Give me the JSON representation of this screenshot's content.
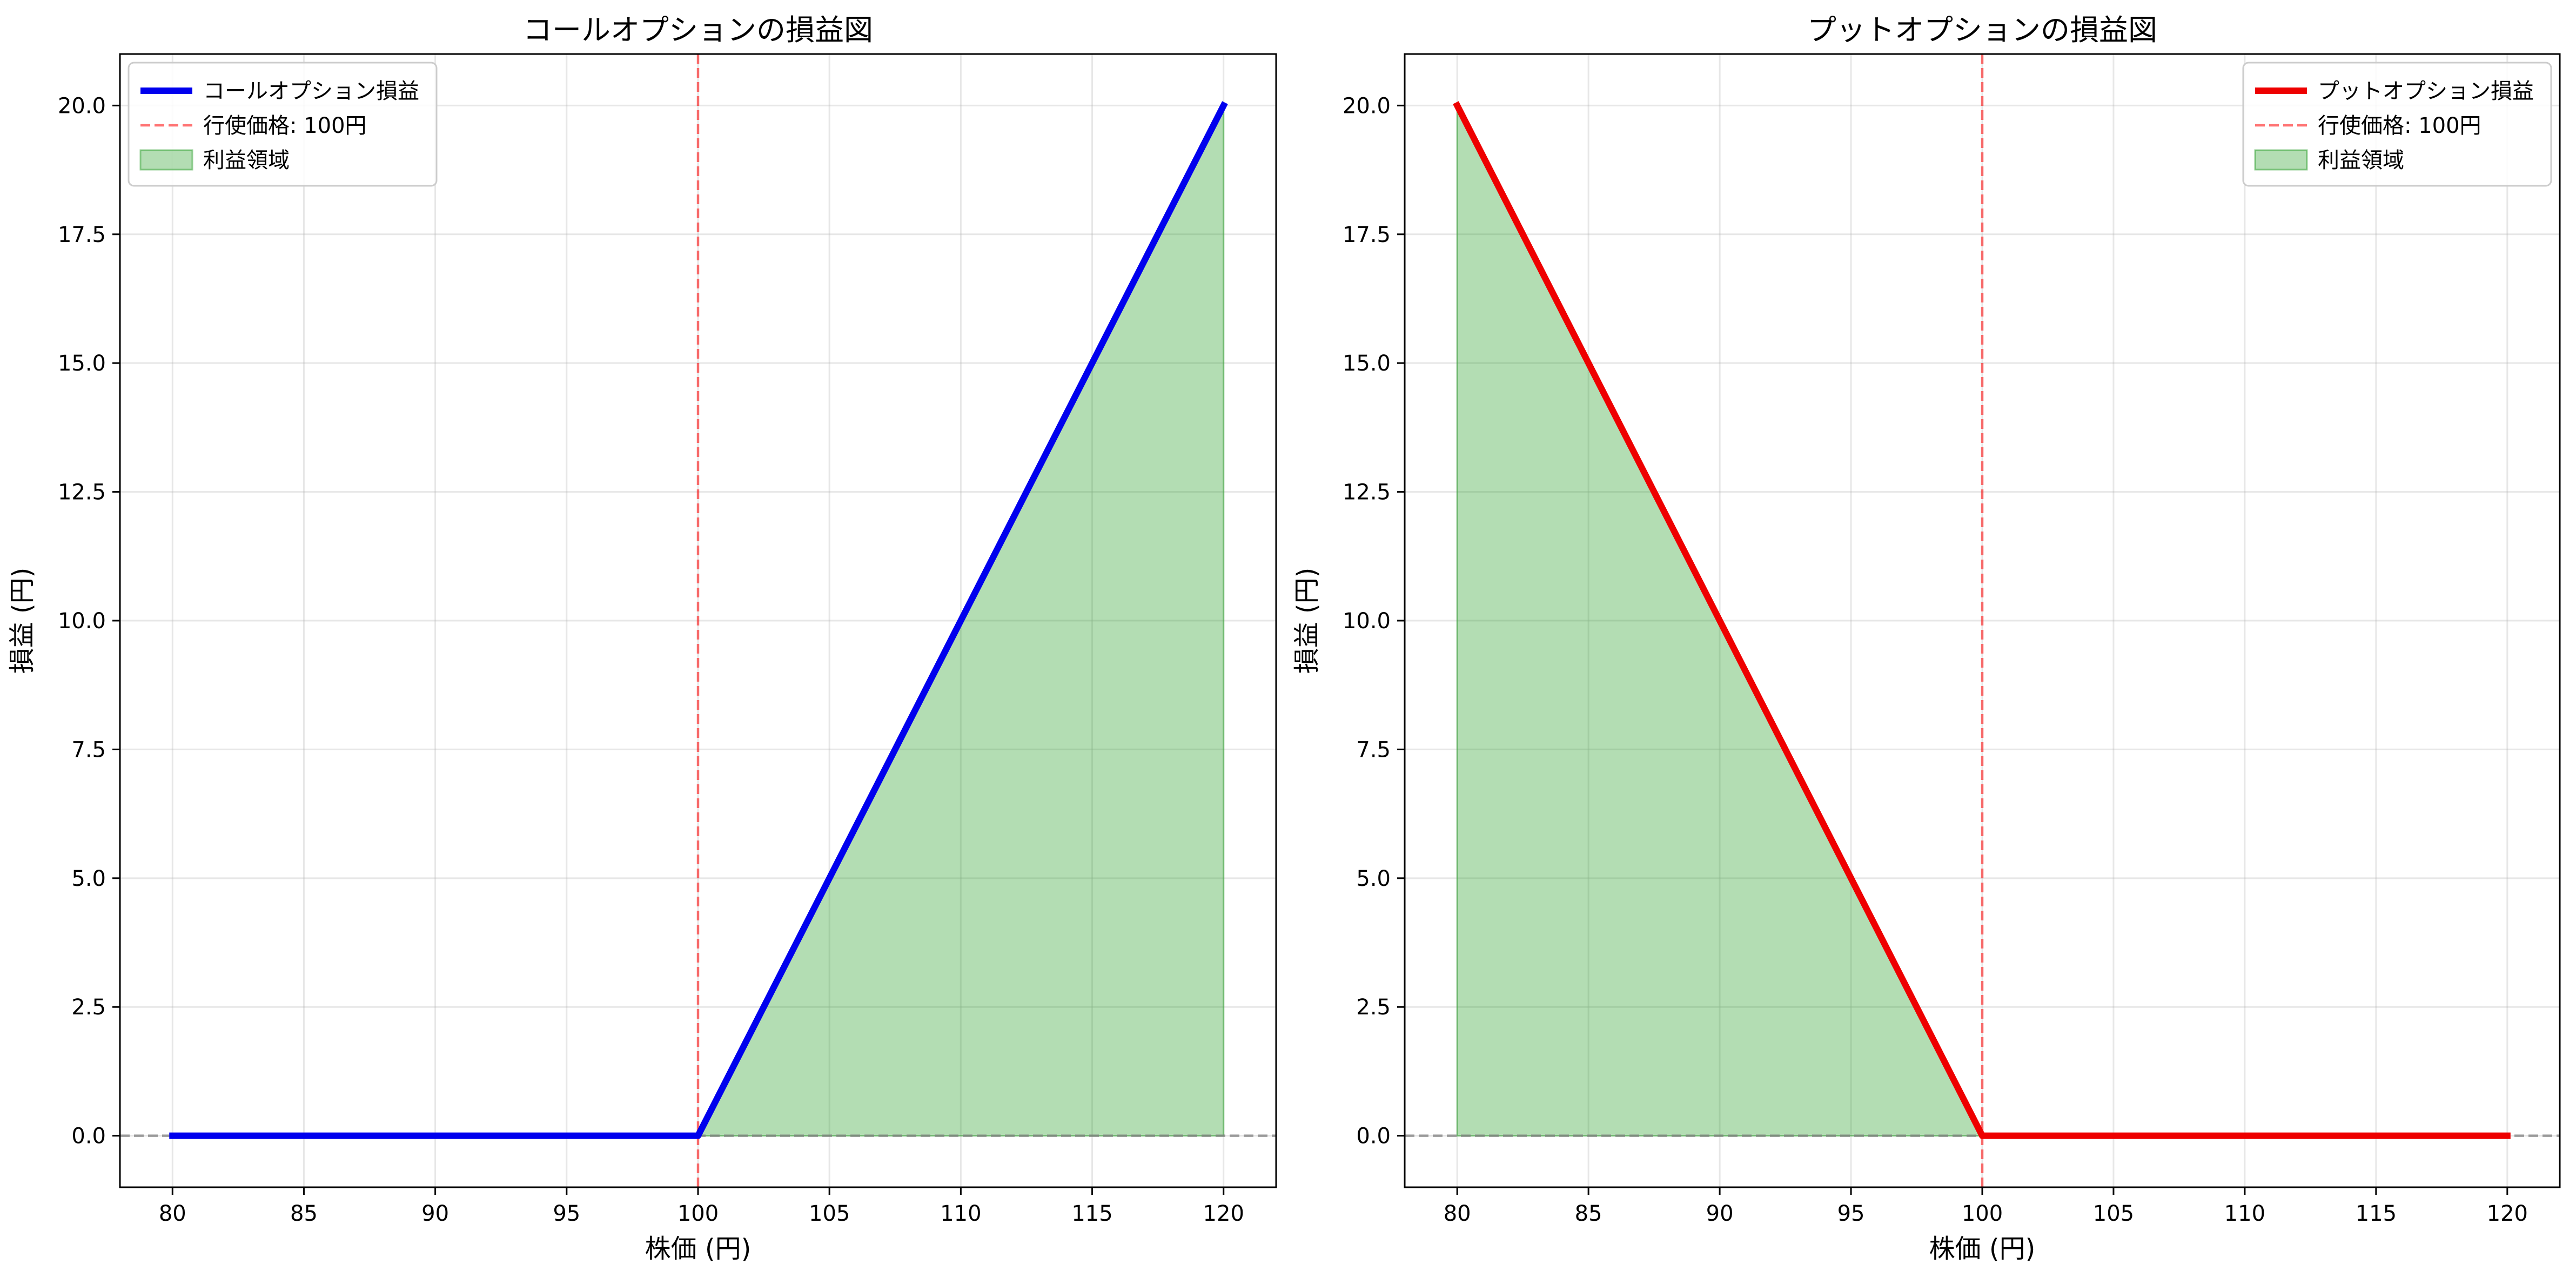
{
  "chart_data": [
    {
      "type": "line",
      "title": "コールオプションの損益図",
      "xlabel": "株価 (円)",
      "ylabel": "損益 (円)",
      "xlim": [
        78,
        122
      ],
      "ylim": [
        -1.0,
        21.0
      ],
      "xticks": [
        80,
        85,
        90,
        95,
        100,
        105,
        110,
        115,
        120
      ],
      "yticks": [
        0.0,
        2.5,
        5.0,
        7.5,
        10.0,
        12.5,
        15.0,
        17.5,
        20.0
      ],
      "xtick_labels": [
        "80",
        "85",
        "90",
        "95",
        "100",
        "105",
        "110",
        "115",
        "120"
      ],
      "ytick_labels": [
        "0.0",
        "2.5",
        "5.0",
        "7.5",
        "10.0",
        "12.5",
        "15.0",
        "17.5",
        "20.0"
      ],
      "grid": true,
      "legend_position": "top-left",
      "strike": 100,
      "series": [
        {
          "name": "コールオプション損益",
          "color": "#0000ee",
          "x": [
            80,
            100,
            120
          ],
          "y": [
            0,
            0,
            20
          ]
        }
      ],
      "strike_line": {
        "name": "行使価格: 100円",
        "x": 100,
        "color": "#ff0000"
      },
      "profit_region": {
        "name": "利益領域",
        "x": [
          100,
          120
        ],
        "y_top": [
          0,
          20
        ],
        "color": "#2ca02c"
      },
      "zero_line": {
        "y": 0,
        "color": "#808080"
      }
    },
    {
      "type": "line",
      "title": "プットオプションの損益図",
      "xlabel": "株価 (円)",
      "ylabel": "損益 (円)",
      "xlim": [
        78,
        122
      ],
      "ylim": [
        -1.0,
        21.0
      ],
      "xticks": [
        80,
        85,
        90,
        95,
        100,
        105,
        110,
        115,
        120
      ],
      "yticks": [
        0.0,
        2.5,
        5.0,
        7.5,
        10.0,
        12.5,
        15.0,
        17.5,
        20.0
      ],
      "xtick_labels": [
        "80",
        "85",
        "90",
        "95",
        "100",
        "105",
        "110",
        "115",
        "120"
      ],
      "ytick_labels": [
        "0.0",
        "2.5",
        "5.0",
        "7.5",
        "10.0",
        "12.5",
        "15.0",
        "17.5",
        "20.0"
      ],
      "grid": true,
      "legend_position": "top-right",
      "strike": 100,
      "series": [
        {
          "name": "プットオプション損益",
          "color": "#ee0000",
          "x": [
            80,
            100,
            120
          ],
          "y": [
            20,
            0,
            0
          ]
        }
      ],
      "strike_line": {
        "name": "行使価格: 100円",
        "x": 100,
        "color": "#ff0000"
      },
      "profit_region": {
        "name": "利益領域",
        "x": [
          80,
          100
        ],
        "y_top": [
          20,
          0
        ],
        "color": "#2ca02c"
      },
      "zero_line": {
        "y": 0,
        "color": "#808080"
      }
    }
  ]
}
